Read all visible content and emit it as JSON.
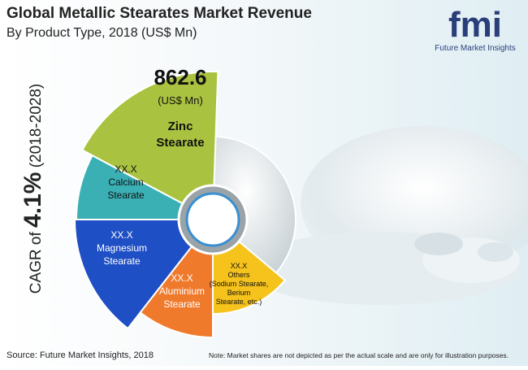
{
  "header": {
    "title": "Global Metallic Stearates Market Revenue",
    "subtitle": "By Product Type, 2018 (US$ Mn)"
  },
  "logo": {
    "mark": "fmi",
    "tagline": "Future Market Insights"
  },
  "side_label": {
    "prefix": "CAGR of",
    "value": "4.1%",
    "period": "(2018-2028)"
  },
  "segments": [
    {
      "lines": [
        "862.6",
        "(US$ Mn)",
        "Zinc",
        "Stearate"
      ]
    },
    {
      "lines": [
        "XX.X",
        "Calcium",
        "Stearate"
      ]
    },
    {
      "lines": [
        "XX.X",
        "Magnesium",
        "Stearate"
      ]
    },
    {
      "lines": [
        "XX.X",
        "Aluminium",
        "Stearate"
      ]
    },
    {
      "lines": [
        "XX.X",
        "Others",
        "(Sodium Stearate,",
        "Berium",
        "Stearate, etc.)"
      ]
    }
  ],
  "footer": {
    "source": "Source: Future Market Insights, 2018",
    "note": "Note: Market shares are not depicted as per the actual scale and are only for illustration purposes."
  }
}
